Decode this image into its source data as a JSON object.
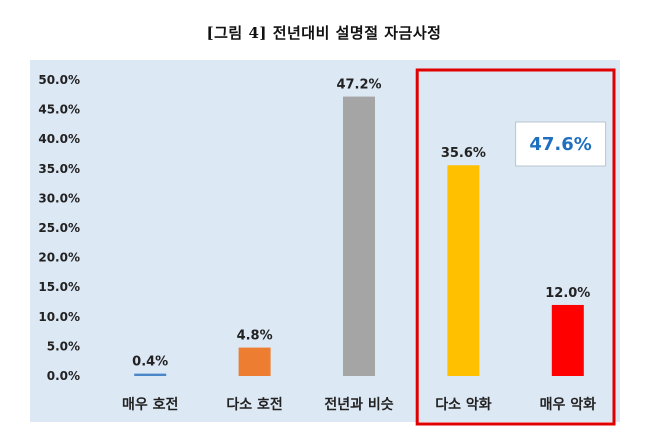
{
  "title": "[그림 4] 전년대비 설명절 자금사정",
  "colors": {
    "plot_background": "#dde8f5",
    "highlight_box": "#e00000",
    "callout_text": "#1f6fc0"
  },
  "chart_data": {
    "type": "bar",
    "categories": [
      "매우 호전",
      "다소 호전",
      "전년과 비슷",
      "다소 악화",
      "매우 악화"
    ],
    "values": [
      0.4,
      4.8,
      47.2,
      35.6,
      12.0
    ],
    "value_labels": [
      "0.4%",
      "4.8%",
      "47.2%",
      "35.6%",
      "12.0%"
    ],
    "bar_colors": [
      "#4a86c8",
      "#ed7d31",
      "#a5a5a5",
      "#ffc000",
      "#ff0000"
    ],
    "ylim": [
      0,
      50
    ],
    "yticks": [
      "0.0%",
      "5.0%",
      "10.0%",
      "15.0%",
      "20.0%",
      "25.0%",
      "30.0%",
      "35.0%",
      "40.0%",
      "45.0%",
      "50.0%"
    ],
    "grid": false,
    "legend": "none",
    "highlight": {
      "categories": [
        "다소 악화",
        "매우 악화"
      ],
      "total_label": "47.6%"
    }
  }
}
